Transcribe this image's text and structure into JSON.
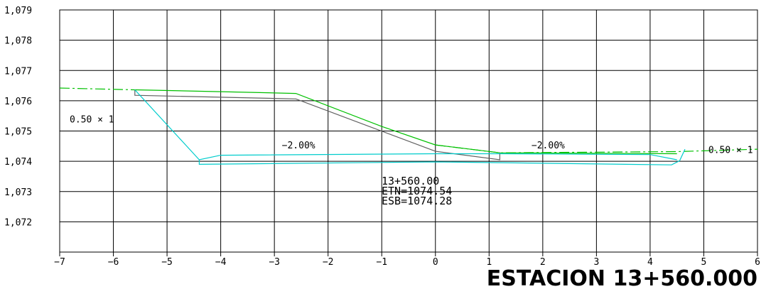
{
  "chart_data": {
    "type": "line",
    "title": "ESTACION 13+560.000",
    "xlabel": "",
    "ylabel": "",
    "xlim": [
      -7,
      6
    ],
    "ylim": [
      1071,
      1079
    ],
    "grid": true,
    "x_ticks": [
      -7,
      -6,
      -5,
      -4,
      -3,
      -2,
      -1,
      0,
      1,
      2,
      3,
      4,
      5,
      6
    ],
    "x_tick_labels": [
      "−7",
      "−6",
      "−5",
      "−4",
      "−3",
      "−2",
      "−1",
      "0",
      "1",
      "2",
      "3",
      "4",
      "5",
      "6"
    ],
    "y_ticks": [
      1072,
      1073,
      1074,
      1075,
      1076,
      1077,
      1078,
      1079
    ],
    "y_tick_labels": [
      "1,072",
      "1,073",
      "1,074",
      "1,075",
      "1,076",
      "1,077",
      "1,078",
      "1,079"
    ],
    "series": [
      {
        "key": "terrain-solid",
        "color": "#00c000",
        "dash": false,
        "points": [
          [
            -5.6,
            1076.36
          ],
          [
            -4.0,
            1076.3
          ],
          [
            -2.6,
            1076.24
          ],
          [
            -1.0,
            1075.15
          ],
          [
            0.0,
            1074.54
          ],
          [
            1.2,
            1074.28
          ],
          [
            4.5,
            1074.25
          ]
        ]
      },
      {
        "key": "terrain-left-dashed",
        "color": "#00c000",
        "dash": true,
        "points": [
          [
            -7.0,
            1076.42
          ],
          [
            -5.6,
            1076.36
          ]
        ]
      },
      {
        "key": "terrain-right-dashed",
        "color": "#00c000",
        "dash": true,
        "points": [
          [
            0.0,
            1074.54
          ],
          [
            1.2,
            1074.28
          ],
          [
            4.5,
            1074.32
          ],
          [
            6.0,
            1074.4
          ]
        ]
      },
      {
        "key": "design-section",
        "color": "#606060",
        "dash": false,
        "points": [
          [
            -5.6,
            1076.36
          ],
          [
            -5.6,
            1076.18
          ],
          [
            -2.6,
            1076.06
          ],
          [
            0.0,
            1074.33
          ],
          [
            1.2,
            1074.05
          ],
          [
            1.2,
            1074.28
          ]
        ]
      },
      {
        "key": "cut-outline",
        "color": "#00cccc",
        "dash": false,
        "points": [
          [
            -5.6,
            1076.36
          ],
          [
            -4.4,
            1074.05
          ],
          [
            -4.0,
            1074.2
          ],
          [
            0.0,
            1074.25
          ],
          [
            1.2,
            1074.25
          ],
          [
            4.0,
            1074.22
          ],
          [
            4.5,
            1074.05
          ]
        ]
      },
      {
        "key": "cut-bottom",
        "color": "#00cccc",
        "dash": false,
        "points": [
          [
            -4.4,
            1074.05
          ],
          [
            -4.4,
            1073.9
          ],
          [
            0.0,
            1073.98
          ],
          [
            4.4,
            1073.88
          ],
          [
            4.55,
            1074.02
          ],
          [
            4.65,
            1074.4
          ]
        ]
      }
    ],
    "annotations": [
      {
        "key": "slope-left",
        "text": "0.50 × 1",
        "x": -6.4,
        "y": 1075.28
      },
      {
        "key": "cross-slope-left",
        "text": "−2.00%",
        "x": -2.55,
        "y": 1074.43
      },
      {
        "key": "cross-slope-right",
        "text": "−2.00%",
        "x": 2.1,
        "y": 1074.43
      },
      {
        "key": "slope-right",
        "text": "0.50 × 1",
        "x": 5.5,
        "y": 1074.27
      }
    ],
    "station_info": [
      "13+560.00",
      "ETN=1074.54",
      "ESB=1074.28"
    ]
  }
}
